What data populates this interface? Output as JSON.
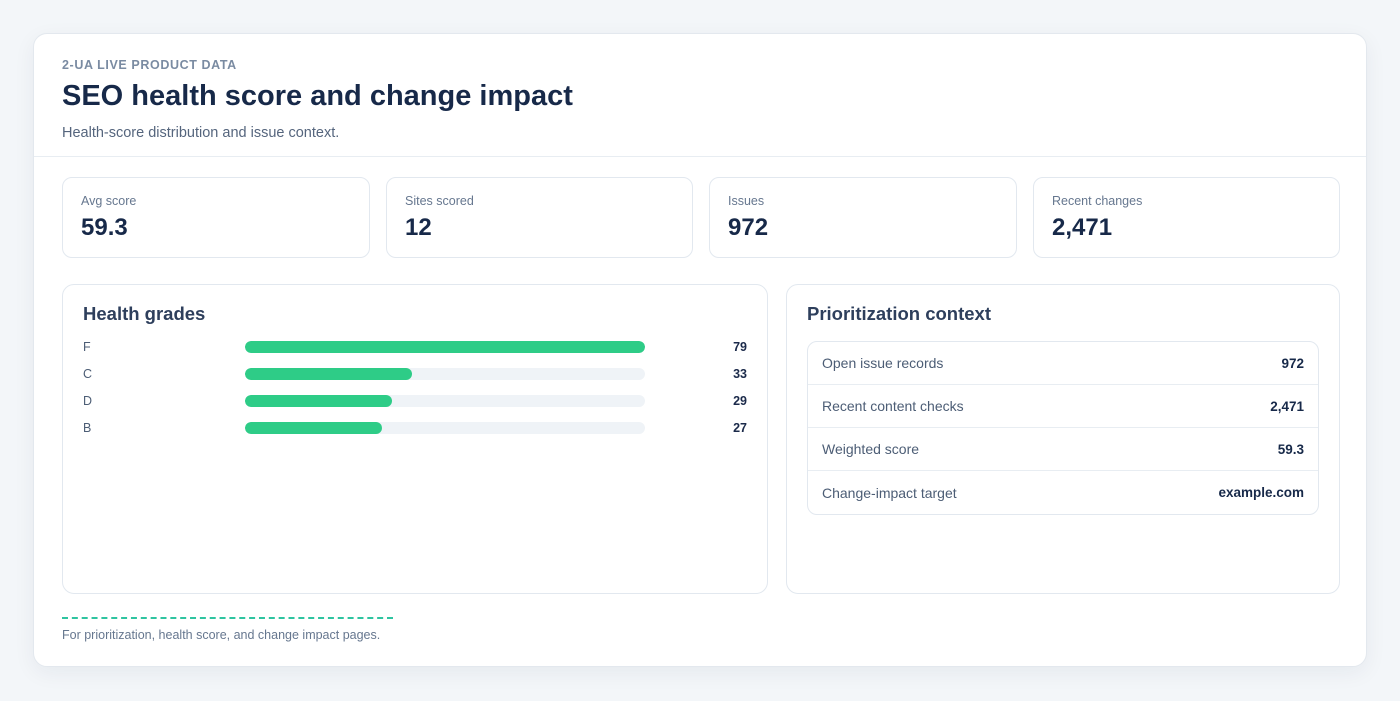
{
  "header": {
    "eyebrow": "2-UA LIVE PRODUCT DATA",
    "title": "SEO health score and change impact",
    "subtitle": "Health-score distribution and issue context."
  },
  "kpis": [
    {
      "label": "Avg score",
      "value": "59.3"
    },
    {
      "label": "Sites scored",
      "value": "12"
    },
    {
      "label": "Issues",
      "value": "972"
    },
    {
      "label": "Recent changes",
      "value": "2,471"
    }
  ],
  "grades": {
    "title": "Health grades",
    "max": 79,
    "bar_color": "#2ecc87",
    "rows": [
      {
        "label": "F",
        "value": 79,
        "count": "79"
      },
      {
        "label": "C",
        "value": 33,
        "count": "33"
      },
      {
        "label": "D",
        "value": 29,
        "count": "29"
      },
      {
        "label": "B",
        "value": 27,
        "count": "27"
      }
    ]
  },
  "context": {
    "title": "Prioritization context",
    "rows": [
      {
        "label": "Open issue records",
        "value": "972"
      },
      {
        "label": "Recent content checks",
        "value": "2,471"
      },
      {
        "label": "Weighted score",
        "value": "59.3"
      },
      {
        "label": "Change-impact target",
        "value": "example.com"
      }
    ]
  },
  "footer": {
    "text": "For prioritization, health score, and change impact pages.",
    "accent_color": "#2ec4a0"
  }
}
